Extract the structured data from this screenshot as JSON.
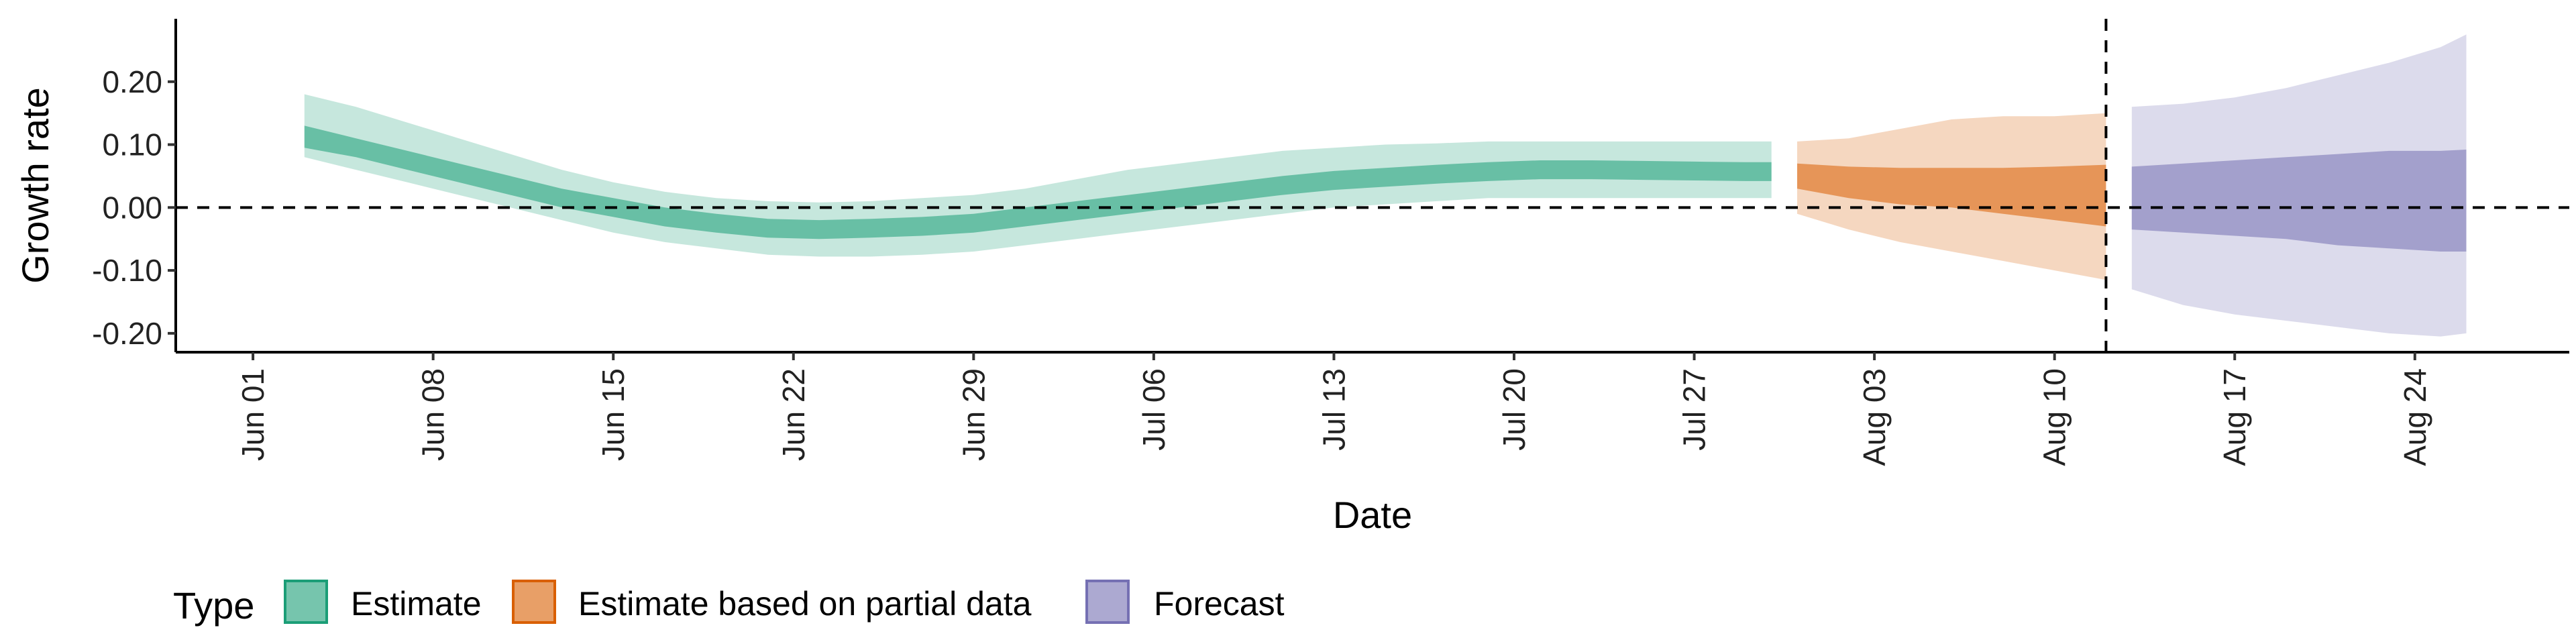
{
  "chart_data": {
    "type": "area",
    "xlabel": "Date",
    "ylabel": "Growth rate",
    "ylim": [
      -0.23,
      0.3
    ],
    "yticks": [
      -0.2,
      -0.1,
      0.0,
      0.1,
      0.2
    ],
    "ytick_labels": [
      "-0.20",
      "-0.10",
      "0.00",
      "0.10",
      "0.20"
    ],
    "xlim": [
      "2021-05-29",
      "2021-08-30"
    ],
    "xticks": [
      "2021-06-01",
      "2021-06-08",
      "2021-06-15",
      "2021-06-22",
      "2021-06-29",
      "2021-07-06",
      "2021-07-13",
      "2021-07-20",
      "2021-07-27",
      "2021-08-03",
      "2021-08-10",
      "2021-08-17",
      "2021-08-24"
    ],
    "xtick_labels": [
      "Jun 01",
      "Jun 08",
      "Jun 15",
      "Jun 22",
      "Jun 29",
      "Jul 06",
      "Jul 13",
      "Jul 20",
      "Jul 27",
      "Aug 03",
      "Aug 10",
      "Aug 17",
      "Aug 24"
    ],
    "hline": 0,
    "vline": "2021-08-12",
    "legend": {
      "title": "Type",
      "position": "bottom",
      "items": [
        "Estimate",
        "Estimate based on partial data",
        "Forecast"
      ]
    },
    "series": [
      {
        "name": "Estimate",
        "color": "#1b9e77",
        "x": [
          "2021-06-03",
          "2021-06-05",
          "2021-06-07",
          "2021-06-09",
          "2021-06-11",
          "2021-06-13",
          "2021-06-15",
          "2021-06-17",
          "2021-06-19",
          "2021-06-21",
          "2021-06-23",
          "2021-06-25",
          "2021-06-27",
          "2021-06-29",
          "2021-07-01",
          "2021-07-03",
          "2021-07-05",
          "2021-07-07",
          "2021-07-09",
          "2021-07-11",
          "2021-07-13",
          "2021-07-15",
          "2021-07-17",
          "2021-07-19",
          "2021-07-21",
          "2021-07-23",
          "2021-07-25",
          "2021-07-27",
          "2021-07-29",
          "2021-07-30"
        ],
        "lower90": [
          0.08,
          0.06,
          0.04,
          0.02,
          0.0,
          -0.02,
          -0.04,
          -0.055,
          -0.065,
          -0.075,
          -0.078,
          -0.078,
          -0.075,
          -0.07,
          -0.06,
          -0.05,
          -0.04,
          -0.03,
          -0.02,
          -0.01,
          0.0,
          0.005,
          0.01,
          0.015,
          0.015,
          0.015,
          0.015,
          0.015,
          0.015,
          0.015
        ],
        "lower50": [
          0.095,
          0.08,
          0.06,
          0.04,
          0.02,
          0.0,
          -0.015,
          -0.03,
          -0.04,
          -0.048,
          -0.05,
          -0.048,
          -0.045,
          -0.04,
          -0.03,
          -0.02,
          -0.01,
          0.0,
          0.01,
          0.02,
          0.028,
          0.033,
          0.038,
          0.042,
          0.045,
          0.045,
          0.044,
          0.043,
          0.042,
          0.042
        ],
        "upper50": [
          0.13,
          0.11,
          0.09,
          0.07,
          0.05,
          0.03,
          0.015,
          0.0,
          -0.01,
          -0.018,
          -0.02,
          -0.018,
          -0.015,
          -0.01,
          0.0,
          0.01,
          0.02,
          0.03,
          0.04,
          0.05,
          0.058,
          0.063,
          0.068,
          0.072,
          0.075,
          0.075,
          0.074,
          0.073,
          0.072,
          0.072
        ],
        "upper90": [
          0.18,
          0.16,
          0.135,
          0.11,
          0.085,
          0.06,
          0.04,
          0.025,
          0.015,
          0.01,
          0.008,
          0.01,
          0.015,
          0.02,
          0.03,
          0.045,
          0.06,
          0.07,
          0.08,
          0.09,
          0.095,
          0.1,
          0.102,
          0.105,
          0.105,
          0.105,
          0.105,
          0.105,
          0.105,
          0.105
        ]
      },
      {
        "name": "Estimate based on partial data",
        "color": "#d95f02",
        "x": [
          "2021-07-31",
          "2021-08-02",
          "2021-08-04",
          "2021-08-06",
          "2021-08-08",
          "2021-08-10",
          "2021-08-12"
        ],
        "lower90": [
          -0.01,
          -0.035,
          -0.055,
          -0.07,
          -0.085,
          -0.1,
          -0.115
        ],
        "lower50": [
          0.03,
          0.015,
          0.005,
          0.0,
          -0.01,
          -0.02,
          -0.03
        ],
        "upper50": [
          0.07,
          0.065,
          0.063,
          0.063,
          0.063,
          0.065,
          0.068
        ],
        "upper90": [
          0.105,
          0.11,
          0.125,
          0.14,
          0.145,
          0.145,
          0.15
        ]
      },
      {
        "name": "Forecast",
        "color": "#7570b3",
        "x": [
          "2021-08-13",
          "2021-08-15",
          "2021-08-17",
          "2021-08-19",
          "2021-08-21",
          "2021-08-23",
          "2021-08-25",
          "2021-08-26"
        ],
        "lower90": [
          -0.13,
          -0.155,
          -0.17,
          -0.18,
          -0.19,
          -0.2,
          -0.205,
          -0.2
        ],
        "lower50": [
          -0.035,
          -0.04,
          -0.045,
          -0.05,
          -0.06,
          -0.065,
          -0.07,
          -0.07
        ],
        "upper50": [
          0.065,
          0.07,
          0.075,
          0.08,
          0.085,
          0.09,
          0.09,
          0.092
        ],
        "upper90": [
          0.16,
          0.165,
          0.175,
          0.19,
          0.21,
          0.23,
          0.255,
          0.275
        ]
      }
    ]
  }
}
